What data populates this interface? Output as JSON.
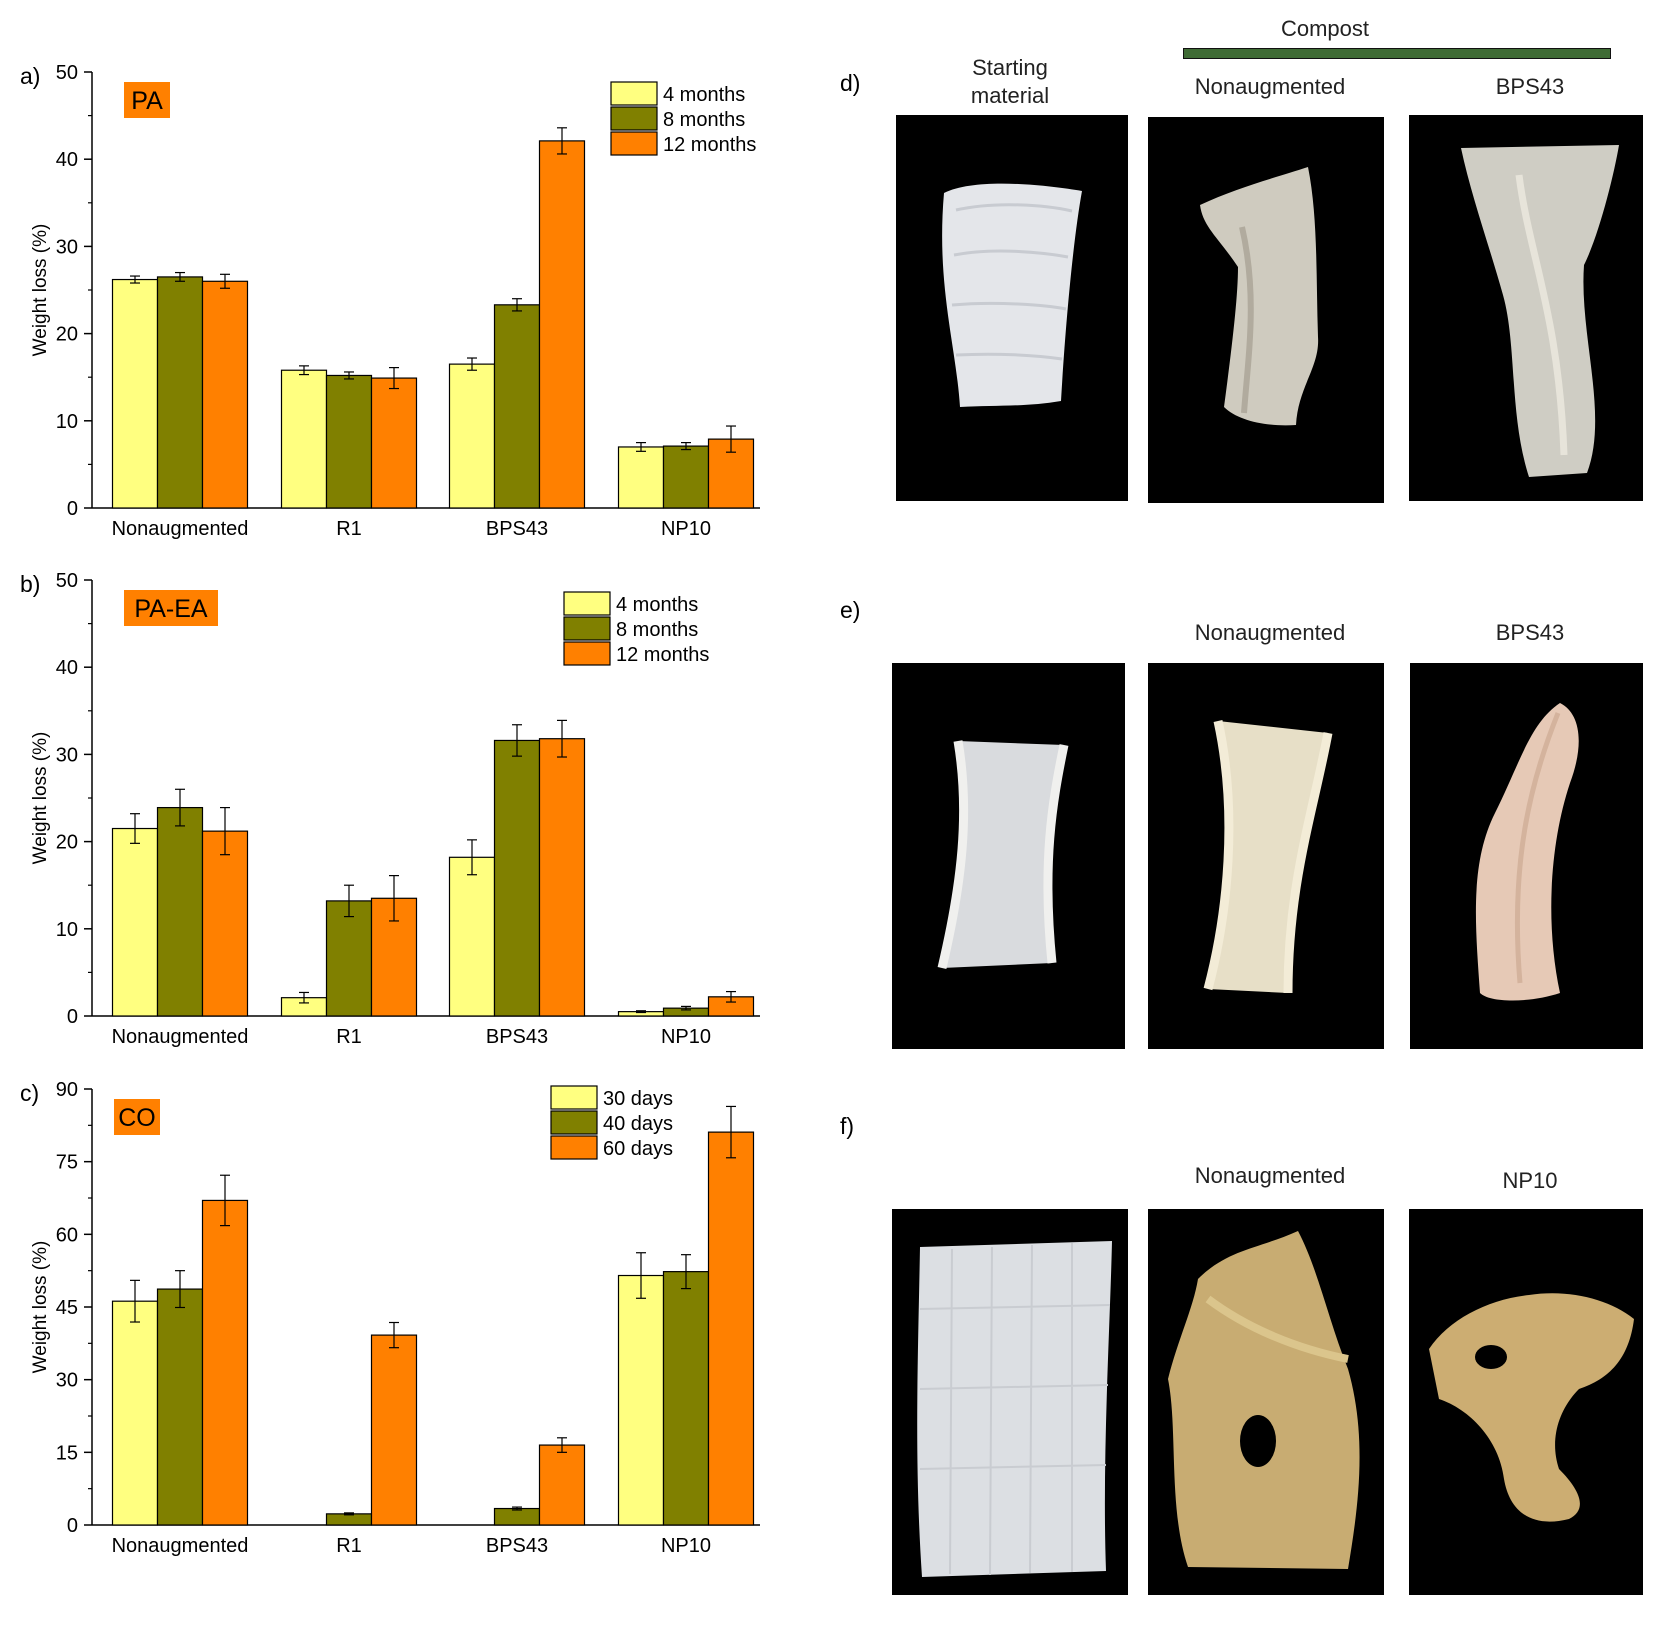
{
  "chart_data": [
    {
      "type": "bar",
      "panel": "a)",
      "title": "PA",
      "ylabel": "Weight loss (%)",
      "ylim": [
        0,
        50
      ],
      "yticks": [
        "0",
        "10",
        "20",
        "30",
        "40",
        "50"
      ],
      "categories": [
        "Nonaugmented",
        "R1",
        "BPS43",
        "NP10"
      ],
      "series": [
        {
          "name": "4 months",
          "color": "#FFFF80",
          "values": [
            26.2,
            15.8,
            16.5,
            7.0
          ],
          "errors": [
            0.4,
            0.5,
            0.7,
            0.5
          ]
        },
        {
          "name": "8 months",
          "color": "#808000",
          "values": [
            26.5,
            15.2,
            23.3,
            7.1
          ],
          "errors": [
            0.5,
            0.4,
            0.7,
            0.4
          ]
        },
        {
          "name": "12 months",
          "color": "#FF8000",
          "values": [
            26.0,
            14.9,
            42.1,
            7.9
          ],
          "errors": [
            0.8,
            1.2,
            1.5,
            1.5
          ]
        }
      ],
      "legend_position": "top-right"
    },
    {
      "type": "bar",
      "panel": "b)",
      "title": "PA-EA",
      "ylabel": "Weight loss (%)",
      "ylim": [
        0,
        50
      ],
      "yticks": [
        "0",
        "10",
        "20",
        "30",
        "40",
        "50"
      ],
      "categories": [
        "Nonaugmented",
        "R1",
        "BPS43",
        "NP10"
      ],
      "series": [
        {
          "name": "4 months",
          "color": "#FFFF80",
          "values": [
            21.5,
            2.1,
            18.2,
            0.5
          ],
          "errors": [
            1.7,
            0.6,
            2.0,
            0.1
          ]
        },
        {
          "name": "8 months",
          "color": "#808000",
          "values": [
            23.9,
            13.2,
            31.6,
            0.9
          ],
          "errors": [
            2.1,
            1.8,
            1.8,
            0.2
          ]
        },
        {
          "name": "12 months",
          "color": "#FF8000",
          "values": [
            21.2,
            13.5,
            31.8,
            2.2
          ],
          "errors": [
            2.7,
            2.6,
            2.1,
            0.6
          ]
        }
      ],
      "legend_position": "top-right"
    },
    {
      "type": "bar",
      "panel": "c)",
      "title": "CO",
      "ylabel": "Weight loss (%)",
      "ylim": [
        0,
        90
      ],
      "yticks": [
        "0",
        "15",
        "30",
        "45",
        "60",
        "75",
        "90"
      ],
      "categories": [
        "Nonaugmented",
        "R1",
        "BPS43",
        "NP10"
      ],
      "series": [
        {
          "name": "30 days",
          "color": "#FFFF80",
          "values": [
            46.2,
            0,
            0,
            51.5
          ],
          "errors": [
            4.3,
            0,
            0,
            4.7
          ]
        },
        {
          "name": "40 days",
          "color": "#808000",
          "values": [
            48.7,
            2.3,
            3.4,
            52.3
          ],
          "errors": [
            3.8,
            0.2,
            0.3,
            3.5
          ]
        },
        {
          "name": "60 days",
          "color": "#FF8000",
          "values": [
            67.0,
            39.2,
            16.5,
            81.1
          ],
          "errors": [
            5.2,
            2.6,
            1.5,
            5.3
          ]
        }
      ],
      "legend_position": "top-right"
    }
  ],
  "photos": {
    "compost_label": "Compost",
    "compost_bar_color": "#3F6B35",
    "panels": [
      {
        "letter": "d)",
        "labels": [
          "Starting\nmaterial",
          "Nonaugmented",
          "BPS43"
        ]
      },
      {
        "letter": "e)",
        "labels": [
          "",
          "Nonaugmented",
          "BPS43"
        ]
      },
      {
        "letter": "f)",
        "labels": [
          "",
          "Nonaugmented",
          "NP10"
        ]
      }
    ]
  }
}
